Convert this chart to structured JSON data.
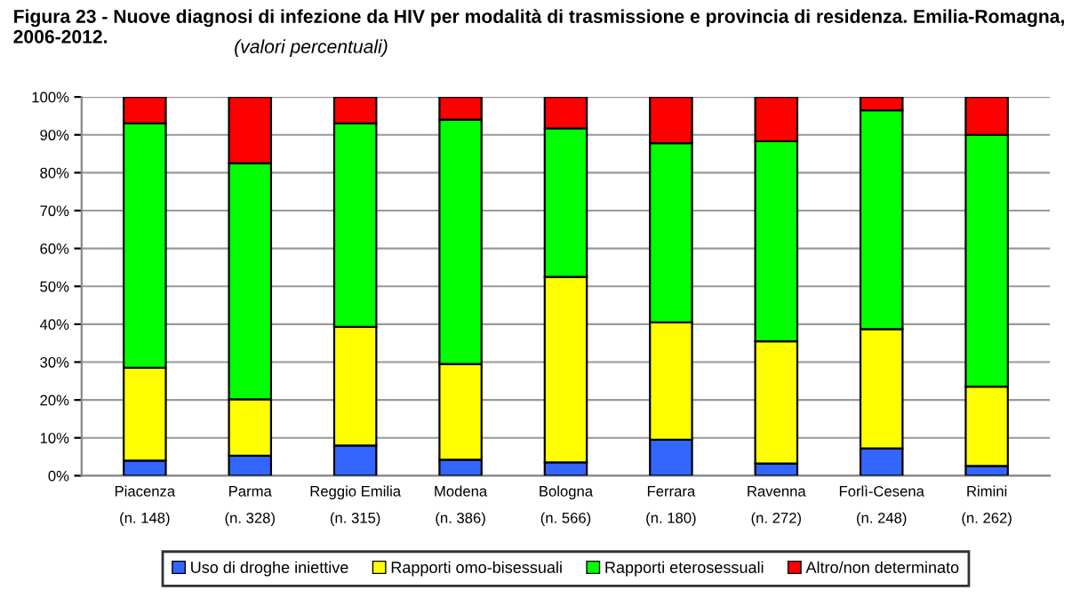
{
  "chart_data": {
    "type": "bar",
    "stacked": true,
    "title": "Figura 23 - Nuove diagnosi di infezione da HIV per modalità di trasmissione e provincia di residenza. Emilia-Romagna, 2006-2012.",
    "subtitle": "(valori percentuali)",
    "categories": [
      "Piacenza\n(n. 148)",
      "Parma\n(n. 328)",
      "Reggio Emilia\n(n. 315)",
      "Modena\n(n. 386)",
      "Bologna\n(n. 566)",
      "Ferrara\n(n. 180)",
      "Ravenna\n(n. 272)",
      "Forlì-Cesena\n(n. 248)",
      "Rimini\n(n. 262)"
    ],
    "series": [
      {
        "name": "Uso di droghe iniettive",
        "color": "#3366ff",
        "values": [
          4,
          5.3,
          8,
          4.2,
          3.5,
          9.5,
          3.2,
          7.2,
          2.6
        ]
      },
      {
        "name": "Rapporti omo-bisessuali",
        "color": "#ffff00",
        "values": [
          24.5,
          14.9,
          31.3,
          25.3,
          49,
          31,
          32.3,
          31.5,
          20.9
        ]
      },
      {
        "name": "Rapporti eterosessuali",
        "color": "#00ff00",
        "values": [
          64.5,
          62.3,
          53.7,
          64.5,
          39.2,
          47.3,
          52.8,
          57.8,
          66.5
        ]
      },
      {
        "name": "Altro/non determinato",
        "color": "#ff0000",
        "values": [
          7,
          17.5,
          7,
          6,
          8.3,
          12.2,
          11.7,
          3.5,
          10
        ]
      }
    ],
    "ylim": [
      0,
      100
    ],
    "yticks": [
      {
        "value": 0,
        "label": "0%"
      },
      {
        "value": 10,
        "label": "10%"
      },
      {
        "value": 20,
        "label": "20%"
      },
      {
        "value": 30,
        "label": "30%"
      },
      {
        "value": 40,
        "label": "40%"
      },
      {
        "value": 50,
        "label": "50%"
      },
      {
        "value": 60,
        "label": "60%"
      },
      {
        "value": 70,
        "label": "70%"
      },
      {
        "value": 80,
        "label": "80%"
      },
      {
        "value": 90,
        "label": "90%"
      },
      {
        "value": 100,
        "label": "100%"
      }
    ],
    "grid": "y",
    "legend": "bottom"
  }
}
